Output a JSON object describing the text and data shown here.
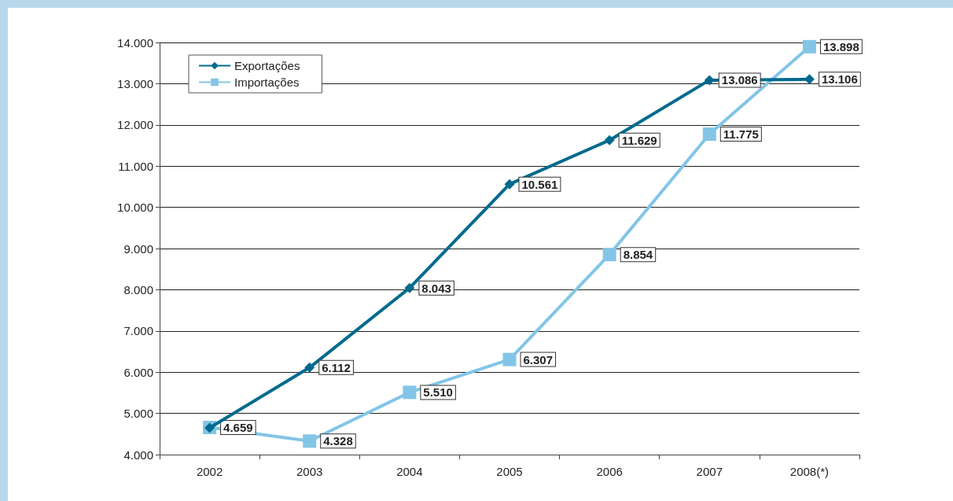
{
  "chart_data": {
    "type": "line",
    "categories": [
      "2002",
      "2003",
      "2004",
      "2005",
      "2006",
      "2007",
      "2008(*)"
    ],
    "ylim": [
      4000,
      14000
    ],
    "yticks": [
      {
        "value": 4000,
        "label": "4.000"
      },
      {
        "value": 5000,
        "label": "5.000"
      },
      {
        "value": 6000,
        "label": "6.000"
      },
      {
        "value": 7000,
        "label": "7.000"
      },
      {
        "value": 8000,
        "label": "8.000"
      },
      {
        "value": 9000,
        "label": "9.000"
      },
      {
        "value": 10000,
        "label": "10.000"
      },
      {
        "value": 11000,
        "label": "11.000"
      },
      {
        "value": 12000,
        "label": "12.000"
      },
      {
        "value": 13000,
        "label": "13.000"
      },
      {
        "value": 14000,
        "label": "14.000"
      }
    ],
    "grid": "y",
    "legend": "top left",
    "series": [
      {
        "name": "Exportações",
        "color": "#006a8e",
        "marker": "diamond",
        "values": [
          4650,
          6112,
          8043,
          10561,
          11629,
          13086,
          13106
        ],
        "value_labels": [
          null,
          "6.112",
          "8.043",
          "10.561",
          "11.629",
          "13.086",
          "13.106"
        ]
      },
      {
        "name": "Importações",
        "color": "#82c5e6",
        "marker": "square",
        "values": [
          4659,
          4328,
          5510,
          6307,
          8854,
          11775,
          13898
        ],
        "value_labels": [
          "4.659",
          "4.328",
          "5.510",
          "6.307",
          "8.854",
          "11.775",
          "13.898"
        ]
      }
    ]
  }
}
